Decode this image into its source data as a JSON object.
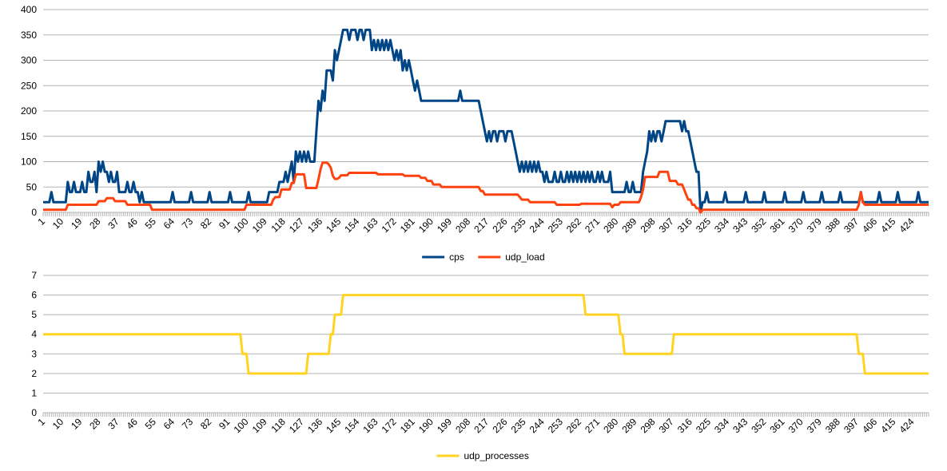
{
  "chart_data": [
    {
      "type": "line",
      "title": "",
      "xlabel": "",
      "ylabel": "",
      "ylim": [
        0,
        400
      ],
      "y_ticks": [
        "0",
        "50",
        "100",
        "150",
        "200",
        "250",
        "300",
        "350",
        "400"
      ],
      "x_range": [
        1,
        432
      ],
      "x_ticks": [
        "1",
        "10",
        "19",
        "28",
        "37",
        "46",
        "55",
        "64",
        "73",
        "82",
        "91",
        "100",
        "109",
        "118",
        "127",
        "136",
        "145",
        "154",
        "163",
        "172",
        "181",
        "190",
        "199",
        "208",
        "217",
        "226",
        "235",
        "244",
        "253",
        "262",
        "271",
        "280",
        "289",
        "298",
        "307",
        "316",
        "325",
        "334",
        "343",
        "352",
        "361",
        "370",
        "379",
        "388",
        "397",
        "406",
        "415",
        "424"
      ],
      "grid": true,
      "legend_position": "bottom",
      "series_encoding": "run-length [value, count]",
      "series": [
        {
          "name": "cps",
          "color": "#004586",
          "runs": [
            [
              20,
              4
            ],
            [
              40,
              1
            ],
            [
              20,
              7
            ],
            [
              60,
              1
            ],
            [
              40,
              2
            ],
            [
              60,
              1
            ],
            [
              40,
              3
            ],
            [
              60,
              1
            ],
            [
              40,
              2
            ],
            [
              80,
              1
            ],
            [
              60,
              2
            ],
            [
              80,
              1
            ],
            [
              40,
              1
            ],
            [
              100,
              1
            ],
            [
              80,
              1
            ],
            [
              100,
              1
            ],
            [
              80,
              2
            ],
            [
              60,
              1
            ],
            [
              80,
              1
            ],
            [
              60,
              2
            ],
            [
              80,
              1
            ],
            [
              40,
              4
            ],
            [
              60,
              1
            ],
            [
              40,
              2
            ],
            [
              60,
              1
            ],
            [
              40,
              2
            ],
            [
              20,
              1
            ],
            [
              40,
              1
            ],
            [
              20,
              14
            ],
            [
              40,
              1
            ],
            [
              20,
              8
            ],
            [
              40,
              1
            ],
            [
              20,
              8
            ],
            [
              40,
              1
            ],
            [
              20,
              9
            ],
            [
              40,
              1
            ],
            [
              20,
              8
            ],
            [
              40,
              1
            ],
            [
              20,
              9
            ],
            [
              40,
              5
            ],
            [
              60,
              3
            ],
            [
              80,
              1
            ],
            [
              60,
              1
            ],
            [
              80,
              1
            ],
            [
              100,
              1
            ],
            [
              60,
              1
            ],
            [
              120,
              1
            ],
            [
              100,
              1
            ],
            [
              120,
              1
            ],
            [
              100,
              1
            ],
            [
              120,
              1
            ],
            [
              100,
              1
            ],
            [
              120,
              1
            ],
            [
              100,
              3
            ],
            [
              160,
              1
            ],
            [
              220,
              1
            ],
            [
              200,
              1
            ],
            [
              240,
              1
            ],
            [
              220,
              1
            ],
            [
              280,
              3
            ],
            [
              260,
              1
            ],
            [
              320,
              1
            ],
            [
              300,
              1
            ],
            [
              320,
              1
            ],
            [
              340,
              1
            ],
            [
              360,
              3
            ],
            [
              340,
              1
            ],
            [
              360,
              3
            ],
            [
              340,
              1
            ],
            [
              360,
              2
            ],
            [
              340,
              1
            ],
            [
              360,
              3
            ],
            [
              320,
              1
            ],
            [
              340,
              1
            ],
            [
              320,
              1
            ],
            [
              340,
              1
            ],
            [
              320,
              1
            ],
            [
              340,
              1
            ],
            [
              320,
              1
            ],
            [
              340,
              1
            ],
            [
              320,
              1
            ],
            [
              340,
              1
            ],
            [
              320,
              1
            ],
            [
              300,
              1
            ],
            [
              320,
              1
            ],
            [
              300,
              1
            ],
            [
              320,
              1
            ],
            [
              280,
              1
            ],
            [
              300,
              1
            ],
            [
              280,
              1
            ],
            [
              300,
              1
            ],
            [
              280,
              1
            ],
            [
              260,
              1
            ],
            [
              240,
              1
            ],
            [
              260,
              1
            ],
            [
              240,
              1
            ],
            [
              220,
              19
            ],
            [
              240,
              1
            ],
            [
              220,
              9
            ],
            [
              200,
              1
            ],
            [
              180,
              1
            ],
            [
              160,
              1
            ],
            [
              140,
              1
            ],
            [
              160,
              1
            ],
            [
              140,
              1
            ],
            [
              160,
              2
            ],
            [
              140,
              1
            ],
            [
              160,
              3
            ],
            [
              140,
              1
            ],
            [
              160,
              3
            ],
            [
              140,
              1
            ],
            [
              120,
              1
            ],
            [
              100,
              1
            ],
            [
              80,
              1
            ],
            [
              100,
              1
            ],
            [
              80,
              1
            ],
            [
              100,
              1
            ],
            [
              80,
              1
            ],
            [
              100,
              1
            ],
            [
              80,
              1
            ],
            [
              100,
              1
            ],
            [
              80,
              1
            ],
            [
              100,
              1
            ],
            [
              80,
              2
            ],
            [
              60,
              1
            ],
            [
              80,
              1
            ],
            [
              60,
              3
            ],
            [
              80,
              1
            ],
            [
              60,
              2
            ],
            [
              80,
              1
            ],
            [
              60,
              2
            ],
            [
              80,
              1
            ],
            [
              60,
              1
            ],
            [
              80,
              1
            ],
            [
              60,
              1
            ],
            [
              80,
              1
            ],
            [
              60,
              1
            ],
            [
              80,
              1
            ],
            [
              60,
              1
            ],
            [
              80,
              1
            ],
            [
              60,
              1
            ],
            [
              80,
              1
            ],
            [
              60,
              1
            ],
            [
              80,
              1
            ],
            [
              60,
              2
            ],
            [
              80,
              1
            ],
            [
              60,
              1
            ],
            [
              80,
              1
            ],
            [
              60,
              3
            ],
            [
              80,
              1
            ],
            [
              40,
              7
            ],
            [
              60,
              1
            ],
            [
              40,
              2
            ],
            [
              60,
              1
            ],
            [
              40,
              4
            ],
            [
              80,
              1
            ],
            [
              100,
              1
            ],
            [
              120,
              1
            ],
            [
              160,
              1
            ],
            [
              140,
              1
            ],
            [
              160,
              1
            ],
            [
              140,
              1
            ],
            [
              160,
              2
            ],
            [
              140,
              1
            ],
            [
              160,
              1
            ],
            [
              180,
              8
            ],
            [
              160,
              1
            ],
            [
              180,
              1
            ],
            [
              160,
              2
            ],
            [
              140,
              1
            ],
            [
              120,
              1
            ],
            [
              100,
              1
            ],
            [
              80,
              2
            ],
            [
              0,
              1
            ],
            [
              20,
              2
            ],
            [
              40,
              1
            ],
            [
              20,
              8
            ],
            [
              40,
              1
            ],
            [
              20,
              9
            ],
            [
              40,
              1
            ],
            [
              20,
              8
            ],
            [
              40,
              1
            ],
            [
              20,
              9
            ],
            [
              40,
              1
            ],
            [
              20,
              8
            ],
            [
              40,
              1
            ],
            [
              20,
              8
            ],
            [
              40,
              1
            ],
            [
              20,
              8
            ],
            [
              40,
              1
            ],
            [
              20,
              9
            ],
            [
              40,
              1
            ],
            [
              20,
              8
            ],
            [
              40,
              1
            ],
            [
              20,
              8
            ],
            [
              40,
              1
            ],
            [
              20,
              9
            ],
            [
              40,
              1
            ],
            [
              20,
              5
            ]
          ]
        },
        {
          "name": "udp_load",
          "color": "#ff420e",
          "runs": [
            [
              5,
              12
            ],
            [
              15,
              15
            ],
            [
              22,
              4
            ],
            [
              28,
              4
            ],
            [
              22,
              6
            ],
            [
              15,
              12
            ],
            [
              5,
              46
            ],
            [
              15,
              13
            ],
            [
              25,
              1
            ],
            [
              30,
              3
            ],
            [
              45,
              5
            ],
            [
              58,
              2
            ],
            [
              75,
              5
            ],
            [
              48,
              6
            ],
            [
              65,
              1
            ],
            [
              85,
              1
            ],
            [
              98,
              3
            ],
            [
              95,
              1
            ],
            [
              88,
              1
            ],
            [
              72,
              1
            ],
            [
              66,
              2
            ],
            [
              68,
              1
            ],
            [
              73,
              4
            ],
            [
              78,
              14
            ],
            [
              75,
              13
            ],
            [
              72,
              8
            ],
            [
              68,
              3
            ],
            [
              62,
              3
            ],
            [
              55,
              4
            ],
            [
              50,
              19
            ],
            [
              42,
              2
            ],
            [
              35,
              17
            ],
            [
              30,
              1
            ],
            [
              25,
              4
            ],
            [
              20,
              13
            ],
            [
              15,
              12
            ],
            [
              17,
              15
            ],
            [
              10,
              1
            ],
            [
              15,
              3
            ],
            [
              20,
              10
            ],
            [
              30,
              1
            ],
            [
              45,
              1
            ],
            [
              70,
              7
            ],
            [
              80,
              5
            ],
            [
              62,
              4
            ],
            [
              55,
              3
            ],
            [
              45,
              1
            ],
            [
              35,
              1
            ],
            [
              25,
              2
            ],
            [
              15,
              2
            ],
            [
              8,
              2
            ],
            [
              0,
              1
            ],
            [
              5,
              76
            ],
            [
              15,
              1
            ],
            [
              40,
              1
            ],
            [
              20,
              1
            ],
            [
              15,
              32
            ]
          ]
        }
      ]
    },
    {
      "type": "line",
      "title": "",
      "xlabel": "",
      "ylabel": "",
      "ylim": [
        0,
        7
      ],
      "y_ticks": [
        "0",
        "1",
        "2",
        "3",
        "4",
        "5",
        "6",
        "7"
      ],
      "x_range": [
        1,
        432
      ],
      "x_ticks": [
        "1",
        "10",
        "19",
        "28",
        "37",
        "46",
        "55",
        "64",
        "73",
        "82",
        "91",
        "100",
        "109",
        "118",
        "127",
        "136",
        "145",
        "154",
        "163",
        "172",
        "181",
        "190",
        "199",
        "208",
        "217",
        "226",
        "235",
        "244",
        "253",
        "262",
        "271",
        "280",
        "289",
        "298",
        "307",
        "316",
        "325",
        "334",
        "343",
        "352",
        "361",
        "370",
        "379",
        "388",
        "397",
        "406",
        "415",
        "424"
      ],
      "grid": true,
      "legend_position": "bottom",
      "series_encoding": "run-length [value, count]",
      "series": [
        {
          "name": "udp_processes",
          "color": "#ffd320",
          "runs": [
            [
              4,
              97
            ],
            [
              3,
              3
            ],
            [
              2,
              29
            ],
            [
              3,
              11
            ],
            [
              4,
              2
            ],
            [
              5,
              4
            ],
            [
              6,
              118
            ],
            [
              5,
              17
            ],
            [
              4,
              2
            ],
            [
              3,
              24
            ],
            [
              4,
              90
            ],
            [
              3,
              3
            ],
            [
              2,
              32
            ]
          ]
        }
      ]
    }
  ]
}
